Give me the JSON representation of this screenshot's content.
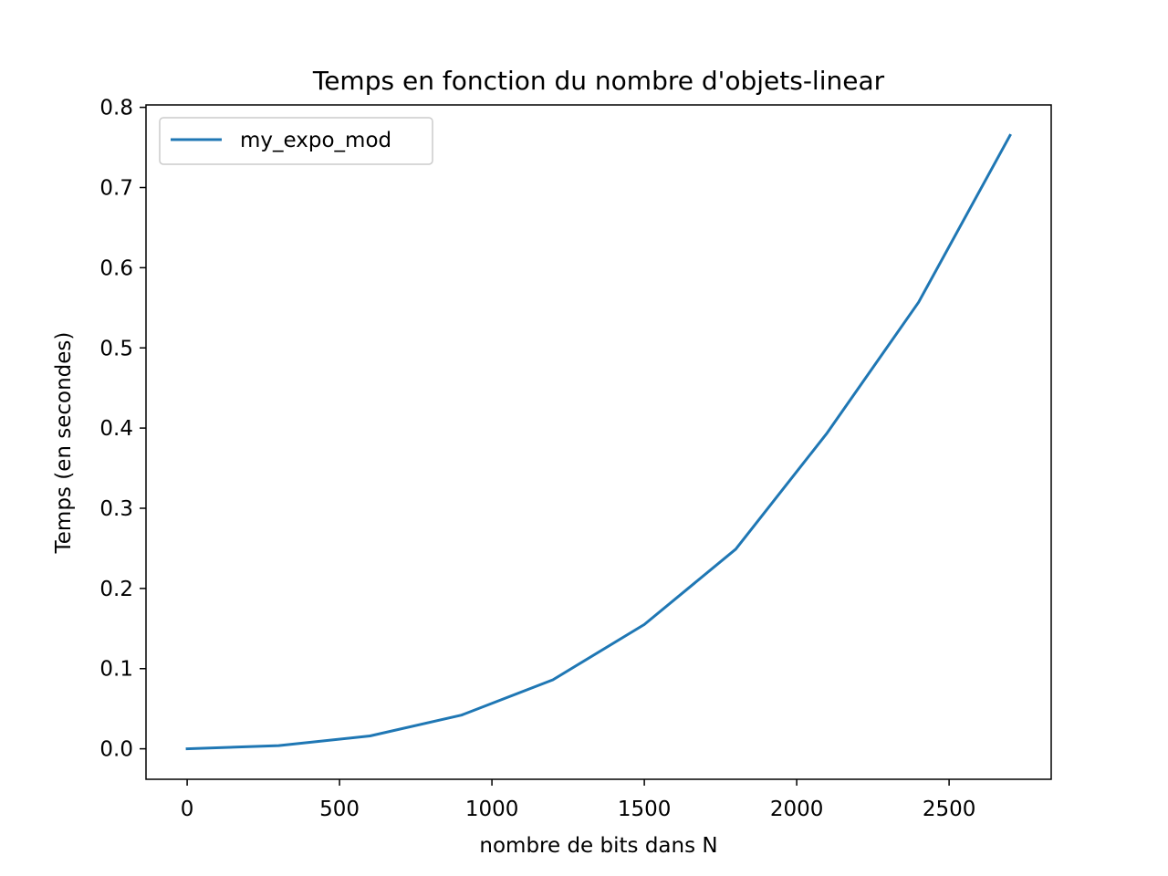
{
  "chart_data": {
    "type": "line",
    "title": "Temps en fonction du nombre d'objets-linear",
    "xlabel": "nombre de bits dans N",
    "ylabel": "Temps (en secondes)",
    "xlim": [
      -135,
      2835
    ],
    "ylim": [
      -0.038,
      0.803
    ],
    "x_ticks": [
      0,
      500,
      1000,
      1500,
      2000,
      2500
    ],
    "x_tick_labels": [
      "0",
      "500",
      "1000",
      "1500",
      "2000",
      "2500"
    ],
    "y_ticks": [
      0.0,
      0.1,
      0.2,
      0.3,
      0.4,
      0.5,
      0.6,
      0.7,
      0.8
    ],
    "y_tick_labels": [
      "0.0",
      "0.1",
      "0.2",
      "0.3",
      "0.4",
      "0.5",
      "0.6",
      "0.7",
      "0.8"
    ],
    "grid": false,
    "legend_position": "top-left",
    "series": [
      {
        "name": "my_expo_mod",
        "color": "#1f77b4",
        "x": [
          0,
          300,
          600,
          900,
          1200,
          1500,
          1800,
          2100,
          2400,
          2700
        ],
        "y": [
          0.0,
          0.004,
          0.016,
          0.042,
          0.086,
          0.155,
          0.249,
          0.394,
          0.557,
          0.765
        ]
      }
    ]
  }
}
